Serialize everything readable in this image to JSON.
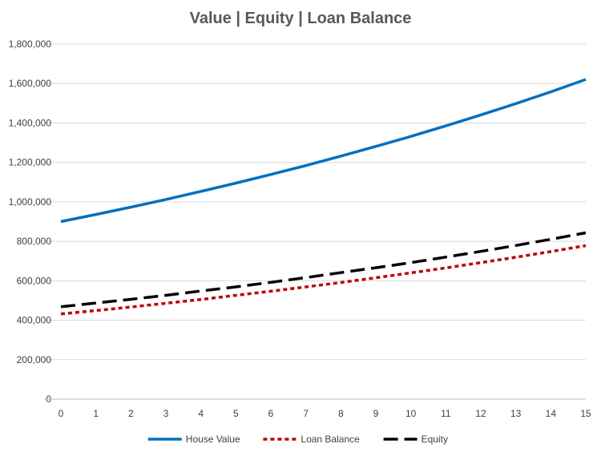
{
  "chart_data": {
    "type": "line",
    "title": "Value | Equity | Loan Balance",
    "xlabel": "",
    "ylabel": "",
    "x": [
      0,
      1,
      2,
      3,
      4,
      5,
      6,
      7,
      8,
      9,
      10,
      11,
      12,
      13,
      14,
      15
    ],
    "x_tick_labels": [
      "0",
      "1",
      "2",
      "3",
      "4",
      "5",
      "6",
      "7",
      "8",
      "9",
      "10",
      "11",
      "12",
      "13",
      "14",
      "15"
    ],
    "ylim": [
      0,
      1800000
    ],
    "y_ticks": [
      0,
      200000,
      400000,
      600000,
      800000,
      1000000,
      1200000,
      1400000,
      1600000,
      1800000
    ],
    "y_tick_labels": [
      "0",
      "200,000",
      "400,000",
      "600,000",
      "800,000",
      "1,000,000",
      "1,200,000",
      "1,400,000",
      "1,600,000",
      "1,800,000"
    ],
    "grid": true,
    "legend_position": "bottom",
    "series": [
      {
        "name": "House Value",
        "color": "#0070c0",
        "style": "solid",
        "values": [
          900000,
          936000,
          973000,
          1012000,
          1053000,
          1095000,
          1139000,
          1184000,
          1232000,
          1281000,
          1332000,
          1385000,
          1441000,
          1498000,
          1558000,
          1621000
        ]
      },
      {
        "name": "Loan Balance",
        "color": "#c00000",
        "style": "dotted",
        "values": [
          432000,
          449000,
          467000,
          486000,
          505000,
          526000,
          547000,
          569000,
          591000,
          615000,
          640000,
          665000,
          692000,
          719000,
          748000,
          778000
        ]
      },
      {
        "name": "Equity",
        "color": "#000000",
        "style": "dashed",
        "values": [
          468000,
          487000,
          506000,
          526000,
          548000,
          569000,
          592000,
          616000,
          641000,
          666000,
          692000,
          720000,
          749000,
          779000,
          810000,
          843000
        ]
      }
    ]
  }
}
